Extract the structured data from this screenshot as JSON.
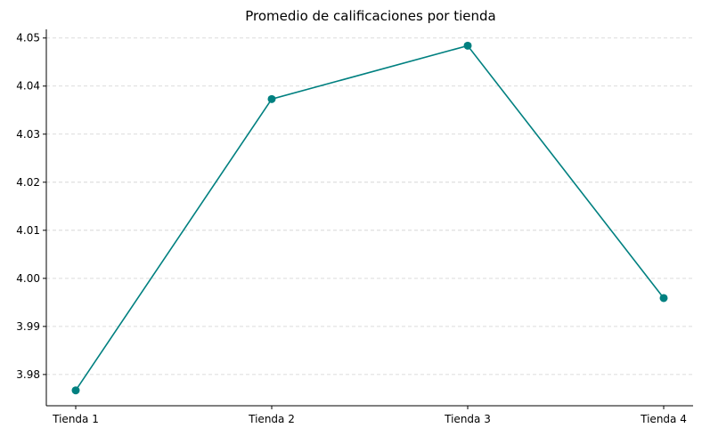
{
  "chart_data": {
    "type": "line",
    "title": "Promedio de calificaciones por tienda",
    "xlabel": "",
    "ylabel": "",
    "categories": [
      "Tienda 1",
      "Tienda 2",
      "Tienda 3",
      "Tienda 4"
    ],
    "series": [
      {
        "values": [
          3.9767,
          4.0373,
          4.0484,
          3.9959
        ],
        "color": "#008080"
      }
    ],
    "y_ticks": [
      "3.98",
      "3.99",
      "4.00",
      "4.01",
      "4.02",
      "4.03",
      "4.04",
      "4.05"
    ],
    "ylim": [
      3.9735,
      4.0518
    ],
    "grid": "horizontal dashed",
    "legend": "none"
  }
}
